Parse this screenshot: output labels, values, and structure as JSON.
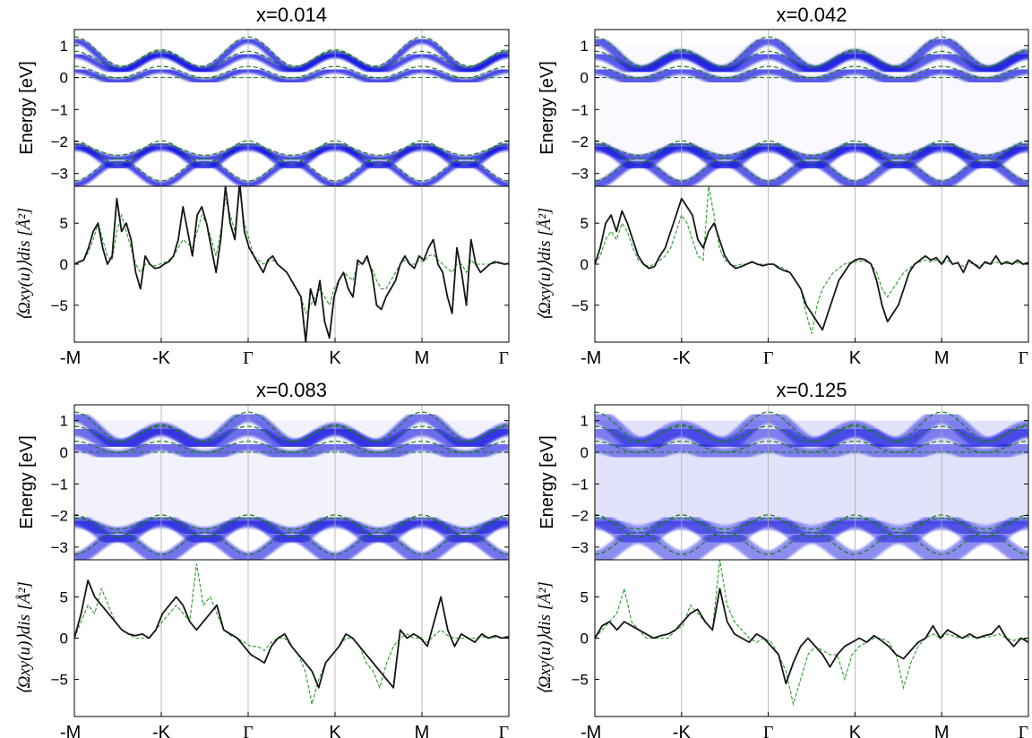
{
  "colors": {
    "spectral": "#1010e0",
    "dft_bands": "#1a7a1a",
    "berry_disordered": "#151515",
    "berry_pristine": "#2a9a2a",
    "vline": "#aaaaaa"
  },
  "chart_data": [
    {
      "type": "heatmap",
      "panel": "top-left",
      "title": "x=0.014",
      "ylabel": "Energy [eV]",
      "ylim": [
        -3.4,
        1.5
      ],
      "yticks": [
        "1",
        "0",
        "−1",
        "−2",
        "−3"
      ],
      "ytick_values": [
        1,
        0,
        -1,
        -2,
        -3
      ],
      "xticks": [
        "-M",
        "-K",
        "Γ",
        "K",
        "M",
        "Γ"
      ],
      "xtick_values": [
        0,
        1,
        2,
        3,
        4,
        5
      ],
      "broadening": 0.06,
      "background": 0.0,
      "dashed_bands": [
        "valence-upper",
        "valence-lower",
        "conduction-upper",
        "conduction-lower"
      ]
    },
    {
      "type": "line",
      "panel": "top-left-lower",
      "ylabel": "⟨Ωxy(u)⟩dis [Å²]",
      "ylim": [
        -9.5,
        9.5
      ],
      "yticks": [
        "5",
        "0",
        "−5"
      ],
      "ytick_values": [
        5,
        0,
        -5
      ],
      "xticks": [
        "-M",
        "-K",
        "Γ",
        "K",
        "M",
        "Γ"
      ],
      "series_disordered": [
        0,
        0.3,
        0.5,
        2,
        4,
        5,
        2,
        0,
        1,
        8,
        4,
        5,
        3,
        -1,
        -3,
        1,
        0,
        -0.5,
        -0.4,
        0,
        0.3,
        1,
        3,
        7,
        4,
        1,
        6,
        7,
        5,
        2,
        -1,
        3,
        9.5,
        5,
        3,
        10,
        4,
        2,
        1,
        0,
        -1,
        0.5,
        1,
        0,
        -0.5,
        -1,
        -2,
        -3,
        -4,
        -9.5,
        -3,
        -5,
        -2,
        -7,
        -9,
        -4,
        -2,
        -1,
        -3,
        -4,
        0.5,
        0,
        1,
        -1,
        -5,
        -5.5,
        -4,
        -3,
        -2,
        0,
        1,
        0,
        -0.5,
        1,
        0.5,
        2,
        3,
        0,
        -1,
        -4,
        -6,
        2,
        -1,
        -5,
        3,
        0,
        -1,
        -0.5,
        0,
        0.3,
        0.2,
        0,
        0.1
      ],
      "series_pristine": [
        0,
        0.2,
        0.5,
        1.5,
        3,
        5,
        3,
        1,
        0.5,
        4,
        6,
        4,
        2,
        0,
        -1,
        0,
        0,
        -0.2,
        0,
        0.2,
        0.5,
        1,
        2,
        3,
        2.5,
        2,
        4,
        6,
        5,
        3,
        1,
        4,
        8,
        6,
        4,
        9,
        5,
        3,
        1,
        0.5,
        0,
        0.3,
        0.5,
        0,
        -0.5,
        -1,
        -2,
        -3,
        -4,
        -6,
        -5,
        -4,
        -3,
        -4,
        -5,
        -3,
        -2,
        -1,
        -1.5,
        -2,
        0,
        0,
        0.5,
        -0.5,
        -2,
        -3,
        -3,
        -2,
        -1,
        0,
        0.5,
        0,
        0,
        0.5,
        0.3,
        1,
        1.2,
        0.5,
        0,
        -0.5,
        -1,
        0,
        0,
        -1,
        0.5,
        0,
        0,
        0,
        0,
        0.1,
        0.1,
        0,
        0
      ]
    },
    {
      "type": "heatmap",
      "panel": "top-right",
      "title": "x=0.042",
      "ylabel": "Energy [eV]",
      "ylim": [
        -3.4,
        1.5
      ],
      "yticks": [
        "1",
        "0",
        "−1",
        "−2",
        "−3"
      ],
      "ytick_values": [
        1,
        0,
        -1,
        -2,
        -3
      ],
      "xticks": [
        "-M",
        "-K",
        "Γ",
        "K",
        "M",
        "Γ"
      ],
      "xtick_values": [
        0,
        1,
        2,
        3,
        4,
        5
      ],
      "broadening": 0.11,
      "background": 0.04
    },
    {
      "type": "line",
      "panel": "top-right-lower",
      "ylabel": "⟨Ωxy(u)⟩dis [Å²]",
      "ylim": [
        -9.5,
        9.5
      ],
      "yticks": [
        "5",
        "0",
        "−5"
      ],
      "ytick_values": [
        5,
        0,
        -5
      ],
      "xticks": [
        "-M",
        "-K",
        "Γ",
        "K",
        "M",
        "Γ"
      ],
      "series_disordered": [
        0,
        2,
        5,
        6,
        4,
        6.5,
        5,
        3,
        1,
        0,
        -0.5,
        -0.3,
        1,
        2,
        4,
        6,
        8,
        7,
        6,
        3,
        2,
        4,
        5,
        3,
        1,
        0,
        -0.5,
        -0.3,
        0,
        0.3,
        0,
        -0.2,
        0,
        0,
        -0.5,
        -0.8,
        -1,
        -2,
        -3,
        -5,
        -6,
        -7,
        -8,
        -6,
        -4,
        -2,
        -1,
        0,
        0.5,
        0.7,
        0.5,
        0,
        -2,
        -5,
        -7,
        -6,
        -5,
        -3,
        -1,
        0,
        0.5,
        1,
        0.5,
        0.8,
        0,
        1,
        0,
        0.2,
        -1,
        0.5,
        0,
        -0.5,
        0.3,
        0,
        1,
        0,
        0.3,
        0,
        0.5,
        0,
        0.2
      ],
      "series_pristine": [
        0,
        1,
        3,
        4,
        3,
        5,
        4,
        2,
        0.5,
        0,
        -0.3,
        0,
        0.5,
        1,
        2,
        4,
        6,
        5,
        3,
        1,
        0.5,
        9.5,
        6,
        2,
        0.5,
        0,
        -0.2,
        0,
        0,
        0.2,
        0,
        0,
        0,
        0,
        -0.3,
        -0.5,
        -1,
        -2,
        -3,
        -6,
        -8.5,
        -5,
        -3,
        -2,
        -1,
        -0.5,
        0,
        0.2,
        0.3,
        0.4,
        0.3,
        0,
        -1,
        -3,
        -4,
        -3,
        -2,
        -1,
        -0.5,
        0,
        0.3,
        0.5,
        0.3,
        0.5,
        0,
        0.5,
        0,
        0.1,
        -0.3,
        0.2,
        0,
        -0.2,
        0.1,
        0,
        0.3,
        0,
        0.1,
        0,
        0.2,
        0,
        0.1
      ]
    },
    {
      "type": "heatmap",
      "panel": "bottom-left",
      "title": "x=0.083",
      "ylabel": "Energy [eV]",
      "ylim": [
        -3.4,
        1.5
      ],
      "yticks": [
        "1",
        "0",
        "−1",
        "−2",
        "−3"
      ],
      "ytick_values": [
        1,
        0,
        -1,
        -2,
        -3
      ],
      "xticks": [
        "-M",
        "-K",
        "Γ",
        "K",
        "M",
        "Γ"
      ],
      "xtick_values": [
        0,
        1,
        2,
        3,
        4,
        5
      ],
      "broadening": 0.17,
      "background": 0.1
    },
    {
      "type": "line",
      "panel": "bottom-left-lower",
      "ylabel": "⟨Ωxy(u)⟩dis [Å²]",
      "ylim": [
        -9.5,
        9.5
      ],
      "yticks": [
        "5",
        "0",
        "−5"
      ],
      "ytick_values": [
        5,
        0,
        -5
      ],
      "xticks": [
        "-M",
        "-K",
        "Γ",
        "K",
        "M",
        "Γ"
      ],
      "series_disordered": [
        0,
        3,
        7,
        5,
        4,
        3,
        2,
        1,
        0.5,
        0.3,
        0.5,
        0,
        1,
        3,
        4,
        5,
        4,
        2,
        1,
        2,
        3,
        4,
        1,
        0.5,
        0,
        -1,
        -2,
        -2.5,
        -3,
        -1,
        0,
        0.5,
        -1,
        -2,
        -3,
        -4,
        -6,
        -3,
        -2,
        -1,
        0.5,
        0,
        -1,
        -2,
        -3,
        -4,
        -5,
        -6,
        1,
        0,
        0.5,
        0,
        -1,
        2,
        5,
        1,
        -1,
        0.5,
        0,
        -0.5,
        0.5,
        0,
        0.3,
        0,
        0.2
      ],
      "series_pristine": [
        0,
        2,
        4,
        3,
        6,
        4,
        2,
        1,
        0.5,
        0,
        0,
        0,
        1,
        2,
        3,
        4,
        3,
        2,
        9,
        4,
        5,
        3,
        1,
        0.3,
        0,
        -0.5,
        -1,
        -1,
        -1.5,
        -0.5,
        0,
        0,
        -1,
        -2,
        -4,
        -8,
        -5,
        -3,
        -2,
        -1,
        0,
        0,
        -1,
        -3,
        -4,
        -6,
        -3,
        -1,
        0,
        0.5,
        0,
        0,
        -0.5,
        0.3,
        1,
        0.3,
        0,
        0,
        0,
        0,
        0.2,
        0,
        0.1,
        0,
        0
      ]
    },
    {
      "type": "heatmap",
      "panel": "bottom-right",
      "title": "x=0.125",
      "ylabel": "Energy [eV]",
      "ylim": [
        -3.4,
        1.5
      ],
      "yticks": [
        "1",
        "0",
        "−1",
        "−2",
        "−3"
      ],
      "ytick_values": [
        1,
        0,
        -1,
        -2,
        -3
      ],
      "xticks": [
        "-M",
        "-K",
        "Γ",
        "K",
        "M",
        "Γ"
      ],
      "xtick_values": [
        0,
        1,
        2,
        3,
        4,
        5
      ],
      "broadening": 0.24,
      "background": 0.22
    },
    {
      "type": "line",
      "panel": "bottom-right-lower",
      "ylabel": "⟨Ωxy(u)⟩dis [Å²]",
      "ylim": [
        -9.5,
        9.5
      ],
      "yticks": [
        "5",
        "0",
        "−5"
      ],
      "ytick_values": [
        5,
        0,
        -5
      ],
      "xticks": [
        "-M",
        "-K",
        "Γ",
        "K",
        "M",
        "Γ"
      ],
      "series_disordered": [
        0,
        1.5,
        2,
        1,
        2,
        1.5,
        1,
        0.5,
        0,
        0.3,
        0.5,
        1,
        2,
        3,
        3.5,
        2,
        1,
        6,
        2,
        0.5,
        0,
        -0.5,
        0.5,
        0,
        -1,
        -2,
        -5.5,
        -3,
        -1,
        0,
        -1,
        -2,
        -3.5,
        -2,
        -1,
        -0.5,
        0,
        -0.5,
        0.3,
        -0.3,
        -1,
        -2,
        -2.5,
        -1.5,
        -0.5,
        0,
        1.5,
        0,
        1,
        0.5,
        0,
        0.5,
        0,
        0.3,
        0.5,
        1.5,
        0,
        -1,
        0,
        -0.5
      ],
      "series_pristine": [
        0,
        1,
        2,
        3,
        6,
        2,
        1,
        0,
        0,
        0,
        0,
        1,
        1.5,
        4,
        3,
        2,
        1,
        9.5,
        4,
        2,
        1,
        0,
        -0.5,
        0,
        -0.5,
        -2,
        -4,
        -8,
        -5,
        -2,
        -1,
        -1.5,
        -2,
        -2,
        -5,
        -2,
        -1,
        -0.5,
        0,
        0,
        -0.5,
        -2,
        -6,
        -3,
        -1,
        0,
        0.5,
        0,
        0.5,
        0.2,
        0,
        0.2,
        0,
        0.1,
        0.2,
        0.5,
        0,
        -0.3,
        0,
        -0.2
      ]
    }
  ]
}
